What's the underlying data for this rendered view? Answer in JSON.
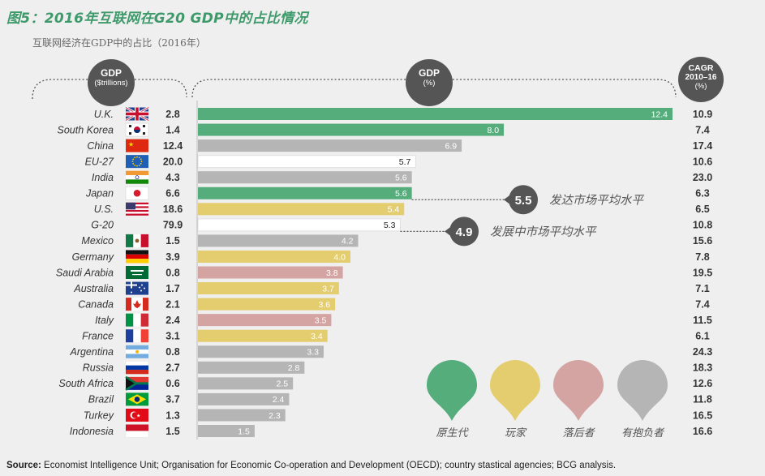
{
  "title": "图5：2016年互联网在G20 GDP中的占比情况",
  "subtitle": "互联网经济在GDP中的占比（2016年）",
  "headers": {
    "gdp_trillions": {
      "line1": "GDP",
      "line2": "($trillions)"
    },
    "gdp_pct": {
      "line1": "GDP",
      "line2": "(%)"
    },
    "cagr": {
      "line1": "CAGR",
      "line2": "2010–16",
      "line3": "(%)"
    }
  },
  "colors": {
    "native": "#55ad7c",
    "player": "#e4cd6e",
    "lagging": "#d4a4a2",
    "potential": "#b5b5b5",
    "aggregate": "#ffffff"
  },
  "annotations": [
    {
      "value": "5.5",
      "label": "发达市场平均水平",
      "ref": 5.5
    },
    {
      "value": "4.9",
      "label": "发展中市场平均水平",
      "ref": 4.9
    }
  ],
  "legend": [
    {
      "label": "原生代",
      "color_key": "native"
    },
    {
      "label": "玩家",
      "color_key": "player"
    },
    {
      "label": "落后者",
      "color_key": "lagging"
    },
    {
      "label": "有抱负者",
      "color_key": "potential"
    }
  ],
  "chart_data": {
    "type": "bar",
    "orientation": "horizontal",
    "title": "2016年互联网在G20 GDP中的占比情况",
    "xlabel": "GDP (%)",
    "xlim": [
      0,
      12.4
    ],
    "categories": [
      "U.K.",
      "South Korea",
      "China",
      "EU-27",
      "India",
      "Japan",
      "U.S.",
      "G-20",
      "Mexico",
      "Germany",
      "Saudi Arabia",
      "Australia",
      "Canada",
      "Italy",
      "France",
      "Argentina",
      "Russia",
      "South Africa",
      "Brazil",
      "Turkey",
      "Indonesia"
    ],
    "gdp_trillions": [
      "2.8",
      "1.4",
      "12.4",
      "20.0",
      "4.3",
      "6.6",
      "18.6",
      "79.9",
      "1.5",
      "3.9",
      "0.8",
      "1.7",
      "2.1",
      "2.4",
      "3.1",
      "0.8",
      "2.7",
      "0.6",
      "3.7",
      "1.3",
      "1.5"
    ],
    "values": [
      12.4,
      8.0,
      6.9,
      5.7,
      5.6,
      5.6,
      5.4,
      5.3,
      4.2,
      4.0,
      3.8,
      3.7,
      3.6,
      3.5,
      3.4,
      3.3,
      2.8,
      2.5,
      2.4,
      2.3,
      1.5
    ],
    "cagr": [
      "10.9",
      "7.4",
      "17.4",
      "10.6",
      "23.0",
      "6.3",
      "6.5",
      "10.8",
      "15.6",
      "7.8",
      "19.5",
      "7.1",
      "7.4",
      "11.5",
      "6.1",
      "24.3",
      "18.3",
      "12.6",
      "11.8",
      "16.5",
      "16.6"
    ],
    "group": [
      "native",
      "native",
      "potential",
      "aggregate",
      "potential",
      "native",
      "player",
      "aggregate",
      "potential",
      "player",
      "lagging",
      "player",
      "player",
      "lagging",
      "player",
      "potential",
      "potential",
      "potential",
      "potential",
      "potential",
      "potential"
    ],
    "flags": [
      "uk",
      "kr",
      "cn",
      "eu",
      "in",
      "jp",
      "us",
      "none",
      "mx",
      "de",
      "sa",
      "au",
      "ca",
      "it",
      "fr",
      "ar",
      "ru",
      "za",
      "br",
      "tr",
      "id"
    ]
  },
  "source": {
    "label": "Source:",
    "text": " Economist Intelligence Unit; Organisation for Economic Co-operation and Development (OECD); country stastical agencies; BCG analysis."
  }
}
